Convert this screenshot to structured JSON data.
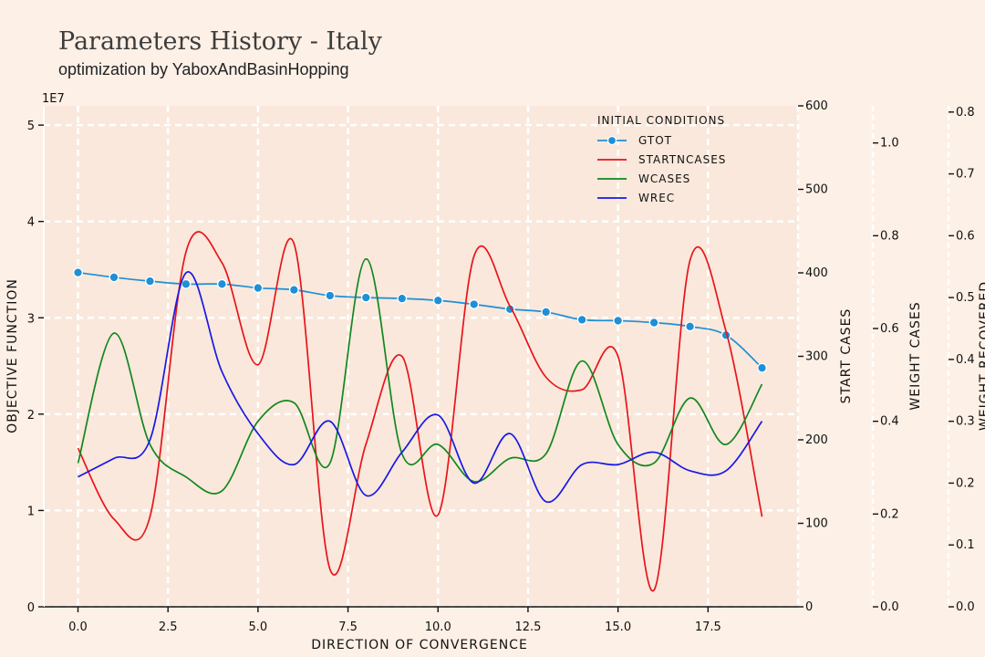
{
  "title": "Parameters History - Italy",
  "subtitle": "optimization by YaboxAndBasinHopping",
  "chart_data": {
    "type": "line",
    "xlabel": "DIRECTION OF CONVERGENCE",
    "x": [
      0,
      1,
      2,
      3,
      4,
      5,
      6,
      7,
      8,
      9,
      10,
      11,
      12,
      13,
      14,
      15,
      16,
      17,
      18,
      19
    ],
    "xlim": [
      -0.95,
      20
    ],
    "xticks": [
      "0.0",
      "2.5",
      "5.0",
      "7.5",
      "10.0",
      "12.5",
      "15.0",
      "17.5"
    ],
    "grid": true,
    "legend": {
      "title": "INITIAL CONDITIONS",
      "placement": "top-right"
    },
    "axes": {
      "left": {
        "label": "OBJECTIVE FUNCTION",
        "ylim": [
          0,
          5.2
        ],
        "ticks": [
          "0",
          "1",
          "2",
          "3",
          "4",
          "5"
        ],
        "offset_text": "1E7"
      },
      "right1": {
        "label": "START CASES",
        "ylim": [
          0,
          600
        ],
        "ticks": [
          "0",
          "100",
          "200",
          "300",
          "400",
          "500",
          "600"
        ]
      },
      "right2": {
        "label": "WEIGHT CASES",
        "ylim": [
          0,
          1.08
        ],
        "ticks": [
          "0.0",
          "0.2",
          "0.4",
          "0.6",
          "0.8",
          "1.0"
        ]
      },
      "right3": {
        "label": "WEIGHT RECOVERED",
        "ylim": [
          0,
          0.81
        ],
        "ticks": [
          "0.0",
          "0.1",
          "0.2",
          "0.3",
          "0.4",
          "0.5",
          "0.6",
          "0.7",
          "0.8"
        ]
      }
    },
    "series": [
      {
        "name": "GTOT",
        "axis": "left",
        "color": "#1f8fd6",
        "marker": true,
        "values": [
          3.47,
          3.42,
          3.38,
          3.35,
          3.35,
          3.31,
          3.29,
          3.23,
          3.21,
          3.2,
          3.18,
          3.14,
          3.09,
          3.06,
          2.98,
          2.97,
          2.95,
          2.91,
          2.82,
          2.48
        ]
      },
      {
        "name": "STARTNCASES",
        "axis": "right1",
        "color": "#e8141a",
        "marker": false,
        "values": [
          190,
          105,
          108,
          425,
          412,
          290,
          435,
          45,
          195,
          300,
          110,
          420,
          360,
          275,
          260,
          300,
          20,
          415,
          330,
          108
        ]
      },
      {
        "name": "WCASES",
        "axis": "right2",
        "color": "#12871e",
        "marker": false,
        "values": [
          0.31,
          0.59,
          0.35,
          0.28,
          0.25,
          0.4,
          0.44,
          0.31,
          0.75,
          0.33,
          0.35,
          0.27,
          0.32,
          0.33,
          0.53,
          0.35,
          0.31,
          0.45,
          0.35,
          0.48
        ]
      },
      {
        "name": "WREC",
        "axis": "right3",
        "color": "#1818e6",
        "marker": false,
        "values": [
          0.21,
          0.24,
          0.27,
          0.54,
          0.38,
          0.28,
          0.23,
          0.3,
          0.18,
          0.25,
          0.31,
          0.2,
          0.28,
          0.17,
          0.23,
          0.23,
          0.25,
          0.22,
          0.22,
          0.3
        ]
      }
    ]
  }
}
